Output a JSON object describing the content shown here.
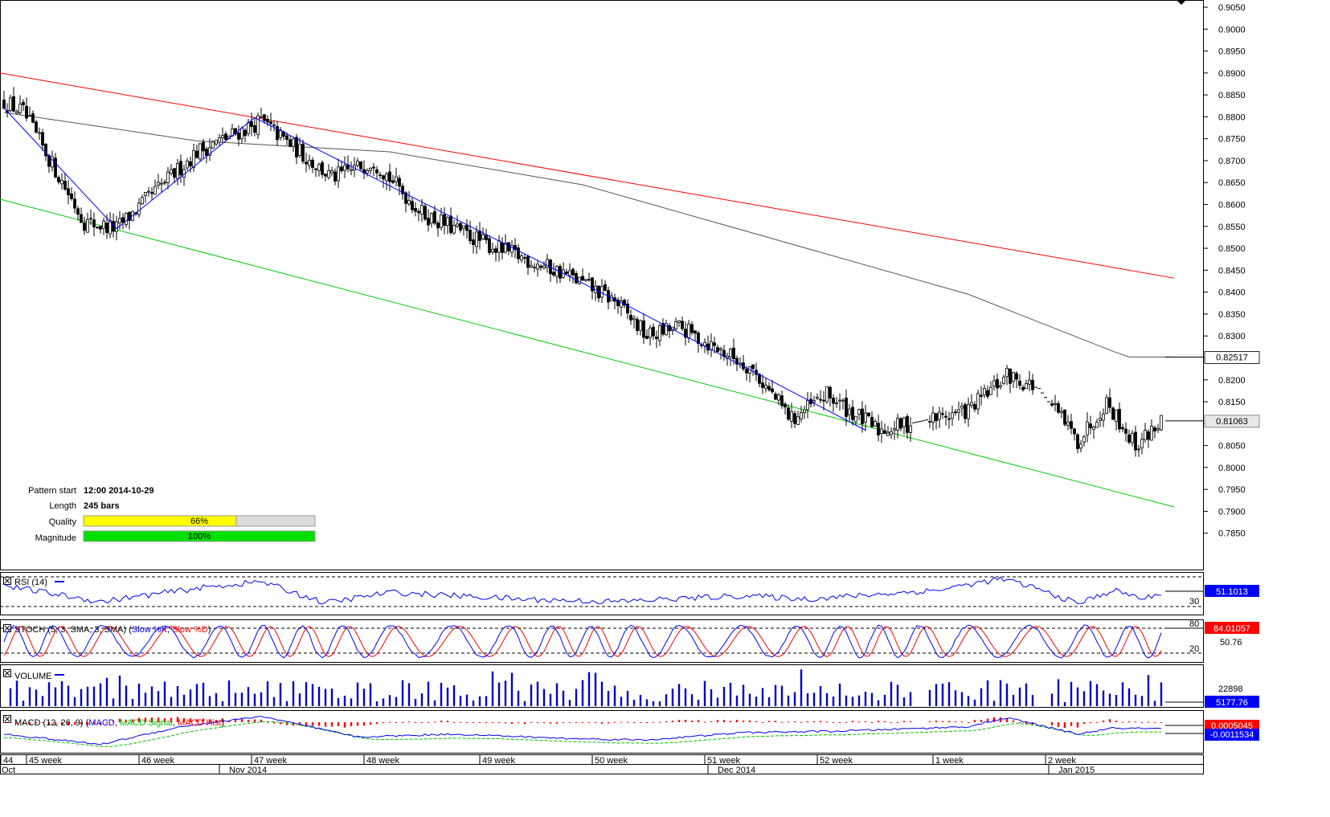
{
  "chart_data": {
    "type": "candlestick",
    "main": {
      "ylim": [
        0.78,
        0.905
      ],
      "yticks": [
        "0.9050",
        "0.9000",
        "0.8950",
        "0.8900",
        "0.8850",
        "0.8800",
        "0.8750",
        "0.8700",
        "0.8650",
        "0.8600",
        "0.8550",
        "0.8500",
        "0.8450",
        "0.8400",
        "0.8350",
        "0.8300",
        "0.8250",
        "0.8200",
        "0.8150",
        "0.8100",
        "0.8050",
        "0.8000",
        "0.7950",
        "0.7900",
        "0.7850"
      ],
      "anchors": [
        {
          "t": 0,
          "c": 0.8835
        },
        {
          "t": 6,
          "c": 0.881
        },
        {
          "t": 25,
          "c": 0.856
        },
        {
          "t": 35,
          "c": 0.8545
        },
        {
          "t": 60,
          "c": 0.872
        },
        {
          "t": 80,
          "c": 0.879
        },
        {
          "t": 92,
          "c": 0.872
        },
        {
          "t": 102,
          "c": 0.866
        },
        {
          "t": 115,
          "c": 0.87
        },
        {
          "t": 130,
          "c": 0.858
        },
        {
          "t": 150,
          "c": 0.851
        },
        {
          "t": 175,
          "c": 0.844
        },
        {
          "t": 190,
          "c": 0.838
        },
        {
          "t": 200,
          "c": 0.83
        },
        {
          "t": 210,
          "c": 0.832
        },
        {
          "t": 232,
          "c": 0.823
        },
        {
          "t": 245,
          "c": 0.811
        },
        {
          "t": 256,
          "c": 0.8165
        },
        {
          "t": 272,
          "c": 0.8085
        },
        {
          "t": 285,
          "c": 0.8105
        },
        {
          "t": 300,
          "c": 0.813
        },
        {
          "t": 312,
          "c": 0.821
        },
        {
          "t": 322,
          "c": 0.818
        },
        {
          "t": 334,
          "c": 0.806
        },
        {
          "t": 343,
          "c": 0.815
        },
        {
          "t": 352,
          "c": 0.805
        },
        {
          "t": 360,
          "c": 0.8106
        }
      ],
      "gaps": [
        [
          282,
          288
        ],
        [
          320,
          326
        ]
      ],
      "sma": [
        {
          "t": 0,
          "v": 0.881
        },
        {
          "t": 60,
          "v": 0.8745
        },
        {
          "t": 120,
          "v": 0.872
        },
        {
          "t": 180,
          "v": 0.8645
        },
        {
          "t": 240,
          "v": 0.852
        },
        {
          "t": 300,
          "v": 0.8395
        },
        {
          "t": 345,
          "v": 0.8265
        },
        {
          "t": 350,
          "v": 0.8252
        },
        {
          "t": 364,
          "v": 0.8252
        }
      ],
      "resistance": [
        {
          "t": 0,
          "v": 0.89
        },
        {
          "t": 364,
          "v": 0.8432
        }
      ],
      "support": [
        {
          "t": 0,
          "v": 0.8612
        },
        {
          "t": 364,
          "v": 0.791
        }
      ],
      "zigzag": [
        {
          "t": 0,
          "v": 0.882
        },
        {
          "t": 35,
          "v": 0.8545
        },
        {
          "t": 78,
          "v": 0.8798
        },
        {
          "t": 195,
          "v": 0.8365
        },
        {
          "t": 268,
          "v": 0.8085
        }
      ],
      "price_badges": [
        {
          "label": "0.82517",
          "value": 0.82517,
          "color": "#222222"
        },
        {
          "label": "0.81063",
          "value": 0.81063,
          "color": "#888888"
        }
      ]
    },
    "pattern_info": {
      "pattern_start_label": "Pattern start",
      "pattern_start_value": "12:00 2014-10-29",
      "length_label": "Length",
      "length_value": "245 bars",
      "quality_label": "Quality",
      "quality_percent": 66,
      "quality_text": "66%",
      "magnitude_label": "Magnitude",
      "magnitude_percent": 100,
      "magnitude_text": "100%"
    },
    "rsi": {
      "title": "RSI (14)",
      "levels": [
        "30"
      ],
      "ylim": [
        20,
        80
      ],
      "badge": "51.1013",
      "anchors": [
        {
          "t": 0,
          "v": 62
        },
        {
          "t": 30,
          "v": 38
        },
        {
          "t": 60,
          "v": 58
        },
        {
          "t": 80,
          "v": 68
        },
        {
          "t": 100,
          "v": 36
        },
        {
          "t": 120,
          "v": 52
        },
        {
          "t": 160,
          "v": 42
        },
        {
          "t": 190,
          "v": 38
        },
        {
          "t": 230,
          "v": 47
        },
        {
          "t": 250,
          "v": 42
        },
        {
          "t": 290,
          "v": 55
        },
        {
          "t": 310,
          "v": 72
        },
        {
          "t": 320,
          "v": 60
        },
        {
          "t": 334,
          "v": 35
        },
        {
          "t": 345,
          "v": 55
        },
        {
          "t": 355,
          "v": 42
        },
        {
          "t": 360,
          "v": 51
        }
      ]
    },
    "stoch": {
      "title": "STOCH (5, 3, SMA, 3, SMA)",
      "legend": [
        {
          "label": "Slow %K",
          "color": "#0000ff"
        },
        {
          "label": "Slow %D",
          "color": "#ff0000"
        }
      ],
      "levels": [
        "80",
        "20"
      ],
      "ylim": [
        0,
        100
      ],
      "badges": [
        "84.01057",
        "50.76"
      ]
    },
    "volume": {
      "title": "VOLUME",
      "ytick": "22898",
      "badge": "5177.76",
      "ylim": [
        0,
        40000
      ]
    },
    "macd": {
      "title": "MACD (12, 26, 9)",
      "legend": [
        {
          "label": "MACD",
          "color": "#0000ff"
        },
        {
          "label": "MACD Signal",
          "color": "#00c000"
        },
        {
          "label": "MACD Hist",
          "color": "#ff0000"
        }
      ],
      "badges": [
        {
          "label": "0.0005045",
          "color": "#ff0000"
        },
        {
          "label": "-0.0011534",
          "color": "#0000ff"
        }
      ],
      "anchors": [
        {
          "t": 0,
          "v": -0.003
        },
        {
          "t": 30,
          "v": -0.0065
        },
        {
          "t": 55,
          "v": -0.0005
        },
        {
          "t": 80,
          "v": 0.003
        },
        {
          "t": 110,
          "v": -0.004
        },
        {
          "t": 140,
          "v": -0.003
        },
        {
          "t": 175,
          "v": -0.0045
        },
        {
          "t": 200,
          "v": -0.005
        },
        {
          "t": 230,
          "v": -0.0025
        },
        {
          "t": 260,
          "v": -0.002
        },
        {
          "t": 300,
          "v": -0.0005
        },
        {
          "t": 312,
          "v": 0.0025
        },
        {
          "t": 334,
          "v": -0.003
        },
        {
          "t": 345,
          "v": -0.001
        },
        {
          "t": 360,
          "v": -0.0012
        }
      ],
      "ylim": [
        -0.0085,
        0.004
      ]
    },
    "x_axis": {
      "week_labels": [
        {
          "t": -2,
          "label": "44"
        },
        {
          "t": 7,
          "label": "45 week"
        },
        {
          "t": 42,
          "label": "46 week"
        },
        {
          "t": 77,
          "label": "47 week"
        },
        {
          "t": 112,
          "label": "48 week"
        },
        {
          "t": 148,
          "label": "49 week"
        },
        {
          "t": 183,
          "label": "50 week"
        },
        {
          "t": 218,
          "label": "51 week"
        },
        {
          "t": 253,
          "label": "52 week"
        },
        {
          "t": 289,
          "label": "1 week"
        },
        {
          "t": 324,
          "label": "2 week"
        }
      ],
      "month_labels": [
        {
          "t": -2,
          "label": "Oct"
        },
        {
          "t": 70,
          "label": "Nov 2014"
        },
        {
          "t": 222,
          "label": "Dec 2014"
        },
        {
          "t": 328,
          "label": "Jan 2015"
        }
      ]
    }
  }
}
